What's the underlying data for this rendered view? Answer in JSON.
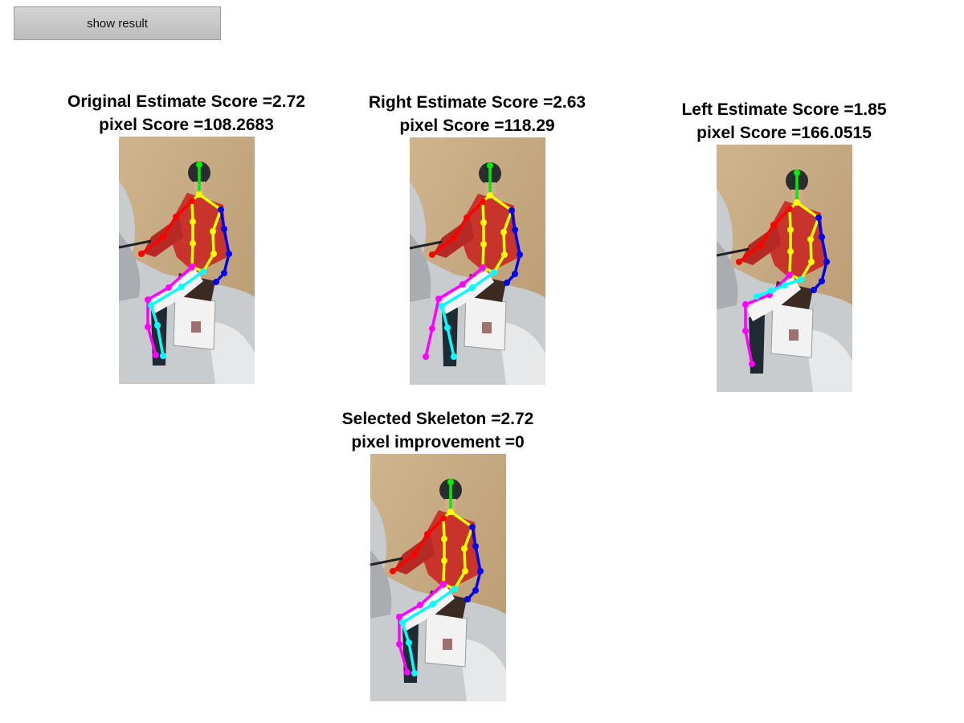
{
  "button": {
    "label": "show result"
  },
  "panels": [
    {
      "id": "original",
      "line1": "Original Estimate Score =2.72",
      "line2": "pixel Score =108.2683"
    },
    {
      "id": "right",
      "line1": "Right Estimate Score =2.63",
      "line2": "pixel Score =118.29"
    },
    {
      "id": "left",
      "line1": "Left Estimate Score =1.85",
      "line2": "pixel Score =166.0515"
    },
    {
      "id": "selected",
      "line1": "Selected Skeleton =2.72",
      "line2": "pixel improvement =0"
    }
  ],
  "colors": {
    "head": "#00ee00",
    "torso": "#ffff00",
    "right_arm": "#ff0000",
    "left_arm": "#0000ee",
    "left_leg": "#ff00ff",
    "right_leg": "#00ffff"
  }
}
